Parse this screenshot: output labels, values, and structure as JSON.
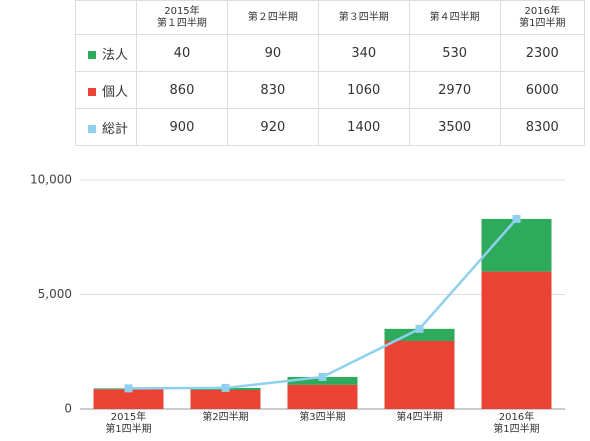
{
  "chart_data": {
    "type": "stacked-bar-line",
    "table_headers": [
      "2015年\n第１四半期",
      "第２四半期",
      "第３四半期",
      "第４四半期",
      "2016年\n第1四半期"
    ],
    "categories": [
      "2015年\n第1四半期",
      "第2四半期",
      "第3四半期",
      "第4四半期",
      "2016年\n第1四半期"
    ],
    "series": [
      {
        "name": "法人",
        "color": "#2eaa5c",
        "kind": "bar",
        "values": [
          40,
          90,
          340,
          530,
          2300
        ]
      },
      {
        "name": "個人",
        "color": "#ea4335",
        "kind": "bar",
        "values": [
          860,
          830,
          1060,
          2970,
          6000
        ]
      },
      {
        "name": "総計",
        "color": "#8fd0ee",
        "kind": "line",
        "values": [
          900,
          920,
          1400,
          3500,
          8300
        ]
      }
    ],
    "ylim": [
      0,
      10000
    ],
    "yticks": [
      0,
      {
        "value": 5000,
        "label": "5,000"
      },
      {
        "value": 10000,
        "label": "10,000"
      }
    ],
    "grid": true
  }
}
